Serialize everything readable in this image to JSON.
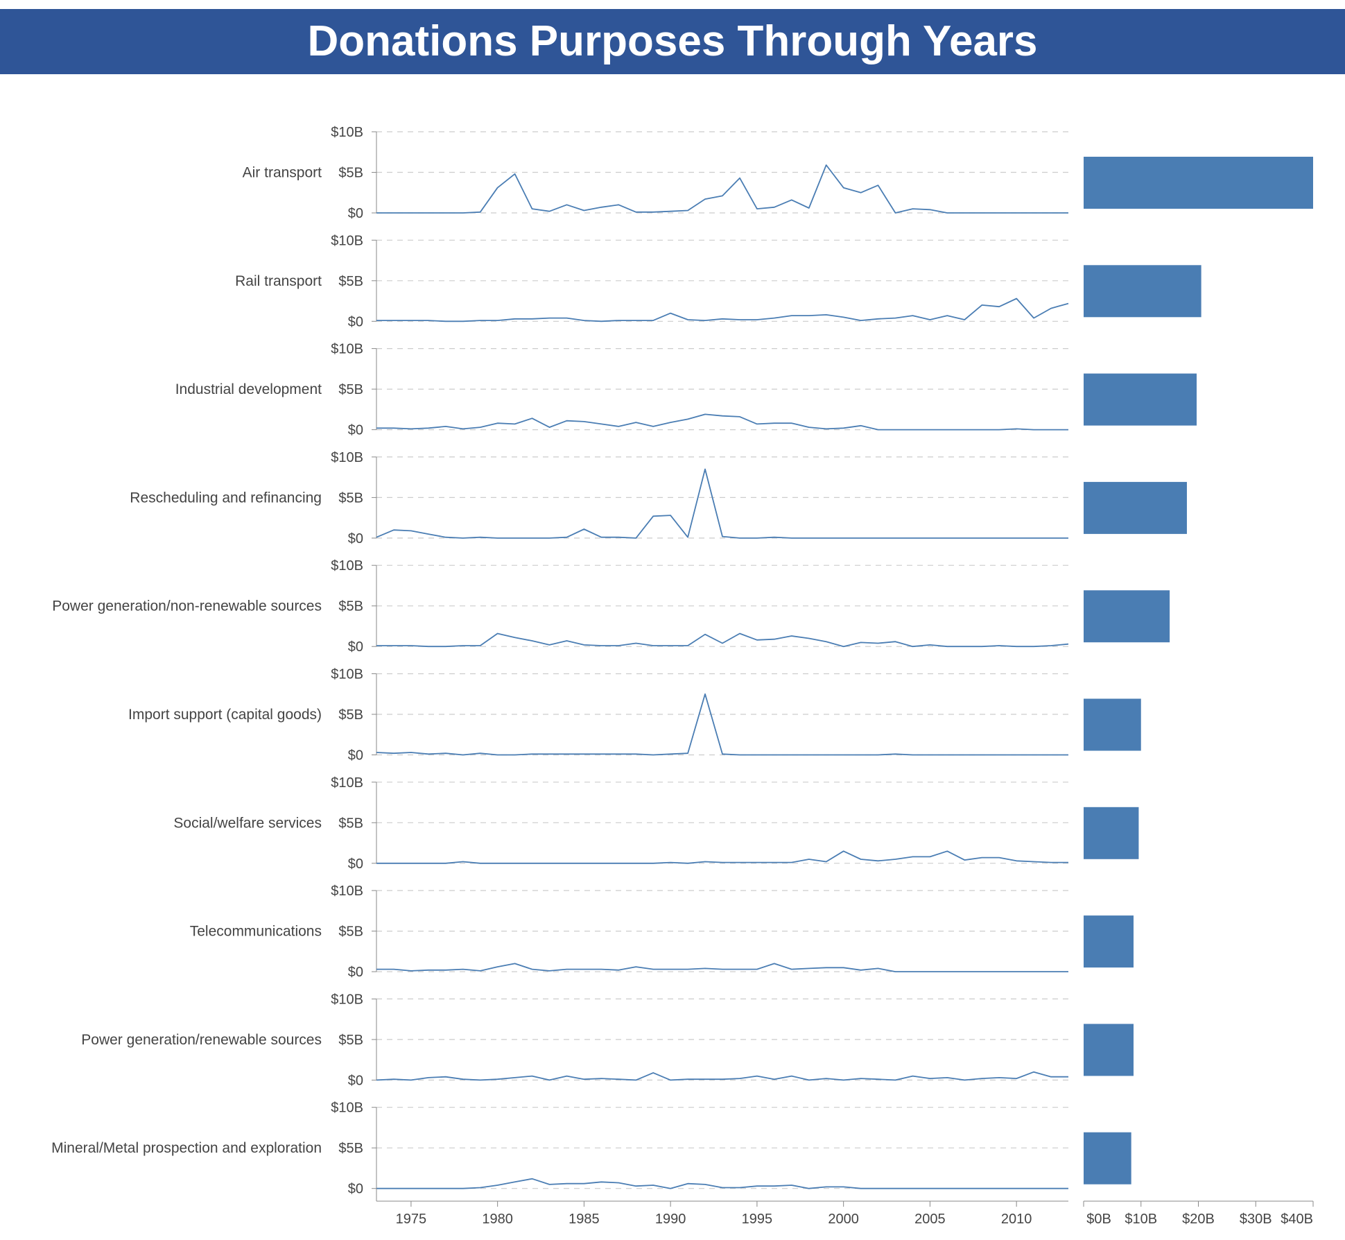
{
  "title": "Donations Purposes Through Years",
  "colors": {
    "header_bg": "#2f5597",
    "line": "#4a7db3",
    "bar": "#4a7db3",
    "grid": "#cccccc",
    "axis": "#888888",
    "text": "#444444"
  },
  "chart_data": [
    {
      "type": "line",
      "small_multiples": true,
      "grid": true,
      "x_range": [
        1973,
        2013
      ],
      "x_ticks": [
        1975,
        1980,
        1985,
        1990,
        1995,
        2000,
        2005,
        2010
      ],
      "x_tick_labels": [
        "1975",
        "1980",
        "1985",
        "1990",
        "1995",
        "2000",
        "2005",
        "2010"
      ],
      "ylim": [
        0,
        10
      ],
      "y_tick_values": [
        0,
        5,
        10
      ],
      "y_tick_labels": [
        "$0",
        "$5B",
        "$10B"
      ],
      "x": [
        1973,
        1974,
        1975,
        1976,
        1977,
        1978,
        1979,
        1980,
        1981,
        1982,
        1983,
        1984,
        1985,
        1986,
        1987,
        1988,
        1989,
        1990,
        1991,
        1992,
        1993,
        1994,
        1995,
        1996,
        1997,
        1998,
        1999,
        2000,
        2001,
        2002,
        2003,
        2004,
        2005,
        2006,
        2007,
        2008,
        2009,
        2010,
        2011,
        2012,
        2013
      ],
      "series": [
        {
          "name": "Air transport",
          "values": [
            0,
            0,
            0,
            0,
            0,
            0,
            0.1,
            3.1,
            4.8,
            0.5,
            0.2,
            1.0,
            0.3,
            0.7,
            1.0,
            0.1,
            0.1,
            0.2,
            0.3,
            1.7,
            2.1,
            4.3,
            0.5,
            0.7,
            1.6,
            0.6,
            5.9,
            3.1,
            2.5,
            3.4,
            0,
            0.5,
            0.4,
            0,
            0,
            0,
            0,
            0,
            0,
            0,
            0
          ]
        },
        {
          "name": "Rail transport",
          "values": [
            0.1,
            0.1,
            0.1,
            0.1,
            0,
            0,
            0.1,
            0.1,
            0.3,
            0.3,
            0.4,
            0.4,
            0.1,
            0,
            0.1,
            0.1,
            0.1,
            1.0,
            0.2,
            0.1,
            0.3,
            0.2,
            0.2,
            0.4,
            0.7,
            0.7,
            0.8,
            0.5,
            0.1,
            0.3,
            0.4,
            0.7,
            0.2,
            0.7,
            0.2,
            2.0,
            1.8,
            2.8,
            0.4,
            1.6,
            2.2
          ]
        },
        {
          "name": "Industrial development",
          "values": [
            0.2,
            0.2,
            0.1,
            0.2,
            0.4,
            0.1,
            0.3,
            0.8,
            0.7,
            1.4,
            0.3,
            1.1,
            1.0,
            0.7,
            0.4,
            0.9,
            0.4,
            0.9,
            1.3,
            1.9,
            1.7,
            1.6,
            0.7,
            0.8,
            0.8,
            0.3,
            0.1,
            0.2,
            0.5,
            0,
            0,
            0,
            0,
            0,
            0,
            0,
            0,
            0.1,
            0,
            0,
            0
          ]
        },
        {
          "name": "Rescheduling and refinancing",
          "values": [
            0.1,
            1.0,
            0.9,
            0.5,
            0.1,
            0,
            0.1,
            0,
            0,
            0,
            0,
            0.1,
            1.1,
            0.1,
            0.1,
            0,
            2.7,
            2.8,
            0.1,
            8.5,
            0.2,
            0,
            0,
            0.1,
            0,
            0,
            0,
            0,
            0,
            0,
            0,
            0,
            0,
            0,
            0,
            0,
            0,
            0,
            0,
            0,
            0
          ]
        },
        {
          "name": "Power generation/non-renewable sources",
          "values": [
            0.1,
            0.1,
            0.1,
            0,
            0,
            0.1,
            0.1,
            1.6,
            1.1,
            0.7,
            0.2,
            0.7,
            0.2,
            0.1,
            0.1,
            0.4,
            0.1,
            0.1,
            0.1,
            1.5,
            0.4,
            1.6,
            0.8,
            0.9,
            1.3,
            1.0,
            0.6,
            0,
            0.5,
            0.4,
            0.6,
            0,
            0.2,
            0,
            0,
            0,
            0.1,
            0,
            0,
            0.1,
            0.3
          ]
        },
        {
          "name": "Import support (capital goods)",
          "values": [
            0.3,
            0.2,
            0.3,
            0.1,
            0.2,
            0,
            0.2,
            0,
            0,
            0.1,
            0.1,
            0.1,
            0.1,
            0.1,
            0.1,
            0.1,
            0,
            0.1,
            0.2,
            7.5,
            0.1,
            0,
            0,
            0,
            0,
            0,
            0,
            0,
            0,
            0,
            0.1,
            0,
            0,
            0,
            0,
            0,
            0,
            0,
            0,
            0,
            0
          ]
        },
        {
          "name": "Social/welfare services",
          "values": [
            0,
            0,
            0,
            0,
            0,
            0.2,
            0,
            0,
            0,
            0,
            0,
            0,
            0,
            0,
            0,
            0,
            0,
            0.1,
            0,
            0.2,
            0.1,
            0.1,
            0.1,
            0.1,
            0.1,
            0.5,
            0.2,
            1.5,
            0.5,
            0.3,
            0.5,
            0.8,
            0.8,
            1.5,
            0.4,
            0.7,
            0.7,
            0.3,
            0.2,
            0.1,
            0.1
          ]
        },
        {
          "name": "Telecommunications",
          "values": [
            0.3,
            0.3,
            0.1,
            0.2,
            0.2,
            0.3,
            0.1,
            0.6,
            1.0,
            0.3,
            0.1,
            0.3,
            0.3,
            0.3,
            0.2,
            0.6,
            0.3,
            0.3,
            0.3,
            0.4,
            0.3,
            0.3,
            0.3,
            1.0,
            0.3,
            0.4,
            0.5,
            0.5,
            0.2,
            0.4,
            0,
            0,
            0,
            0,
            0,
            0,
            0,
            0,
            0,
            0,
            0
          ]
        },
        {
          "name": "Power generation/renewable sources",
          "values": [
            0,
            0.1,
            0,
            0.3,
            0.4,
            0.1,
            0,
            0.1,
            0.3,
            0.5,
            0,
            0.5,
            0.1,
            0.2,
            0.1,
            0,
            0.9,
            0,
            0.1,
            0.1,
            0.1,
            0.2,
            0.5,
            0.1,
            0.5,
            0,
            0.2,
            0,
            0.2,
            0.1,
            0,
            0.5,
            0.2,
            0.3,
            0,
            0.2,
            0.3,
            0.2,
            1.0,
            0.4,
            0.4
          ]
        },
        {
          "name": "Mineral/Metal prospection and exploration",
          "values": [
            0,
            0,
            0,
            0,
            0,
            0,
            0.1,
            0.4,
            0.8,
            1.2,
            0.5,
            0.6,
            0.6,
            0.8,
            0.7,
            0.3,
            0.4,
            0,
            0.6,
            0.5,
            0.1,
            0.1,
            0.3,
            0.3,
            0.4,
            0,
            0.2,
            0.2,
            0,
            0,
            0,
            0,
            0,
            0,
            0,
            0,
            0,
            0,
            0,
            0,
            0
          ]
        }
      ]
    },
    {
      "type": "bar",
      "orientation": "horizontal",
      "categories": [
        "Air transport",
        "Rail transport",
        "Industrial development",
        "Rescheduling and refinancing",
        "Power generation/non-renewable sources",
        "Import support (capital goods)",
        "Social/welfare services",
        "Telecommunications",
        "Power generation/renewable sources",
        "Mineral/Metal prospection and exploration"
      ],
      "values": [
        40,
        20.5,
        19.7,
        18,
        15,
        10,
        9.6,
        8.7,
        8.7,
        8.3
      ],
      "xlim": [
        0,
        40
      ],
      "x_tick_values": [
        0,
        10,
        20,
        30,
        40
      ],
      "x_tick_labels": [
        "$0B",
        "$10B",
        "$20B",
        "$30B",
        "$40B"
      ]
    }
  ]
}
